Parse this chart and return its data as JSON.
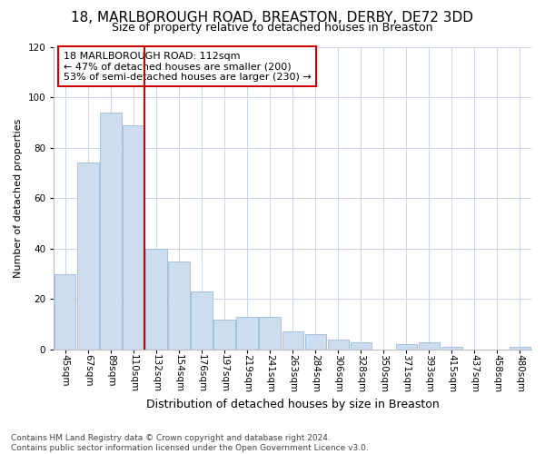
{
  "title": "18, MARLBOROUGH ROAD, BREASTON, DERBY, DE72 3DD",
  "subtitle": "Size of property relative to detached houses in Breaston",
  "xlabel": "Distribution of detached houses by size in Breaston",
  "ylabel": "Number of detached properties",
  "categories": [
    "45sqm",
    "67sqm",
    "89sqm",
    "110sqm",
    "132sqm",
    "154sqm",
    "176sqm",
    "197sqm",
    "219sqm",
    "241sqm",
    "263sqm",
    "284sqm",
    "306sqm",
    "328sqm",
    "350sqm",
    "371sqm",
    "393sqm",
    "415sqm",
    "437sqm",
    "458sqm",
    "480sqm"
  ],
  "values": [
    30,
    74,
    94,
    89,
    40,
    35,
    23,
    12,
    13,
    13,
    7,
    6,
    4,
    3,
    0,
    2,
    3,
    1,
    0,
    0,
    1
  ],
  "bar_color": "#ccddf0",
  "bar_edge_color": "#9ab8d8",
  "vline_x": 3.5,
  "vline_color": "#cc0000",
  "annotation_text": "18 MARLBOROUGH ROAD: 112sqm\n← 47% of detached houses are smaller (200)\n53% of semi-detached houses are larger (230) →",
  "annotation_box_color": "#ffffff",
  "annotation_box_edge": "#cc0000",
  "ylim": [
    0,
    120
  ],
  "yticks": [
    0,
    20,
    40,
    60,
    80,
    100,
    120
  ],
  "footnote": "Contains HM Land Registry data © Crown copyright and database right 2024.\nContains public sector information licensed under the Open Government Licence v3.0.",
  "bg_color": "#ffffff",
  "grid_color": "#c8d4e8",
  "title_fontsize": 11,
  "subtitle_fontsize": 9,
  "ylabel_fontsize": 8,
  "xlabel_fontsize": 9,
  "tick_fontsize": 7.5,
  "annot_fontsize": 8,
  "footnote_fontsize": 6.5
}
